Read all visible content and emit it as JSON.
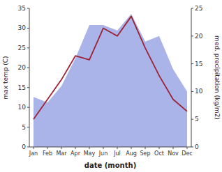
{
  "chart_data": {
    "type": "line",
    "categories": [
      "Jan",
      "Feb",
      "Mar",
      "Apr",
      "May",
      "Jun",
      "Jul",
      "Aug",
      "Sep",
      "Oct",
      "Nov",
      "Dec"
    ],
    "xlabel": "date (month)",
    "ylabel": "max temp (C)",
    "y2label": "med. precipitation (kg/m2)",
    "series": [
      {
        "type": "area",
        "axis": "y2",
        "color": "#aab4e8",
        "values": [
          9,
          8,
          11,
          16,
          22,
          22,
          21,
          24,
          19,
          20,
          14,
          10
        ]
      },
      {
        "type": "line",
        "color": "#9b2335",
        "values": [
          7,
          12,
          17,
          23,
          22,
          30,
          28,
          33,
          25,
          18,
          12,
          9
        ]
      }
    ],
    "ylim": [
      0,
      35
    ],
    "yticks": [
      0,
      5,
      10,
      15,
      20,
      25,
      30,
      35
    ],
    "y2lim": [
      0,
      25
    ],
    "y2ticks": [
      0,
      5,
      10,
      15,
      20,
      25
    ],
    "grid": false
  }
}
